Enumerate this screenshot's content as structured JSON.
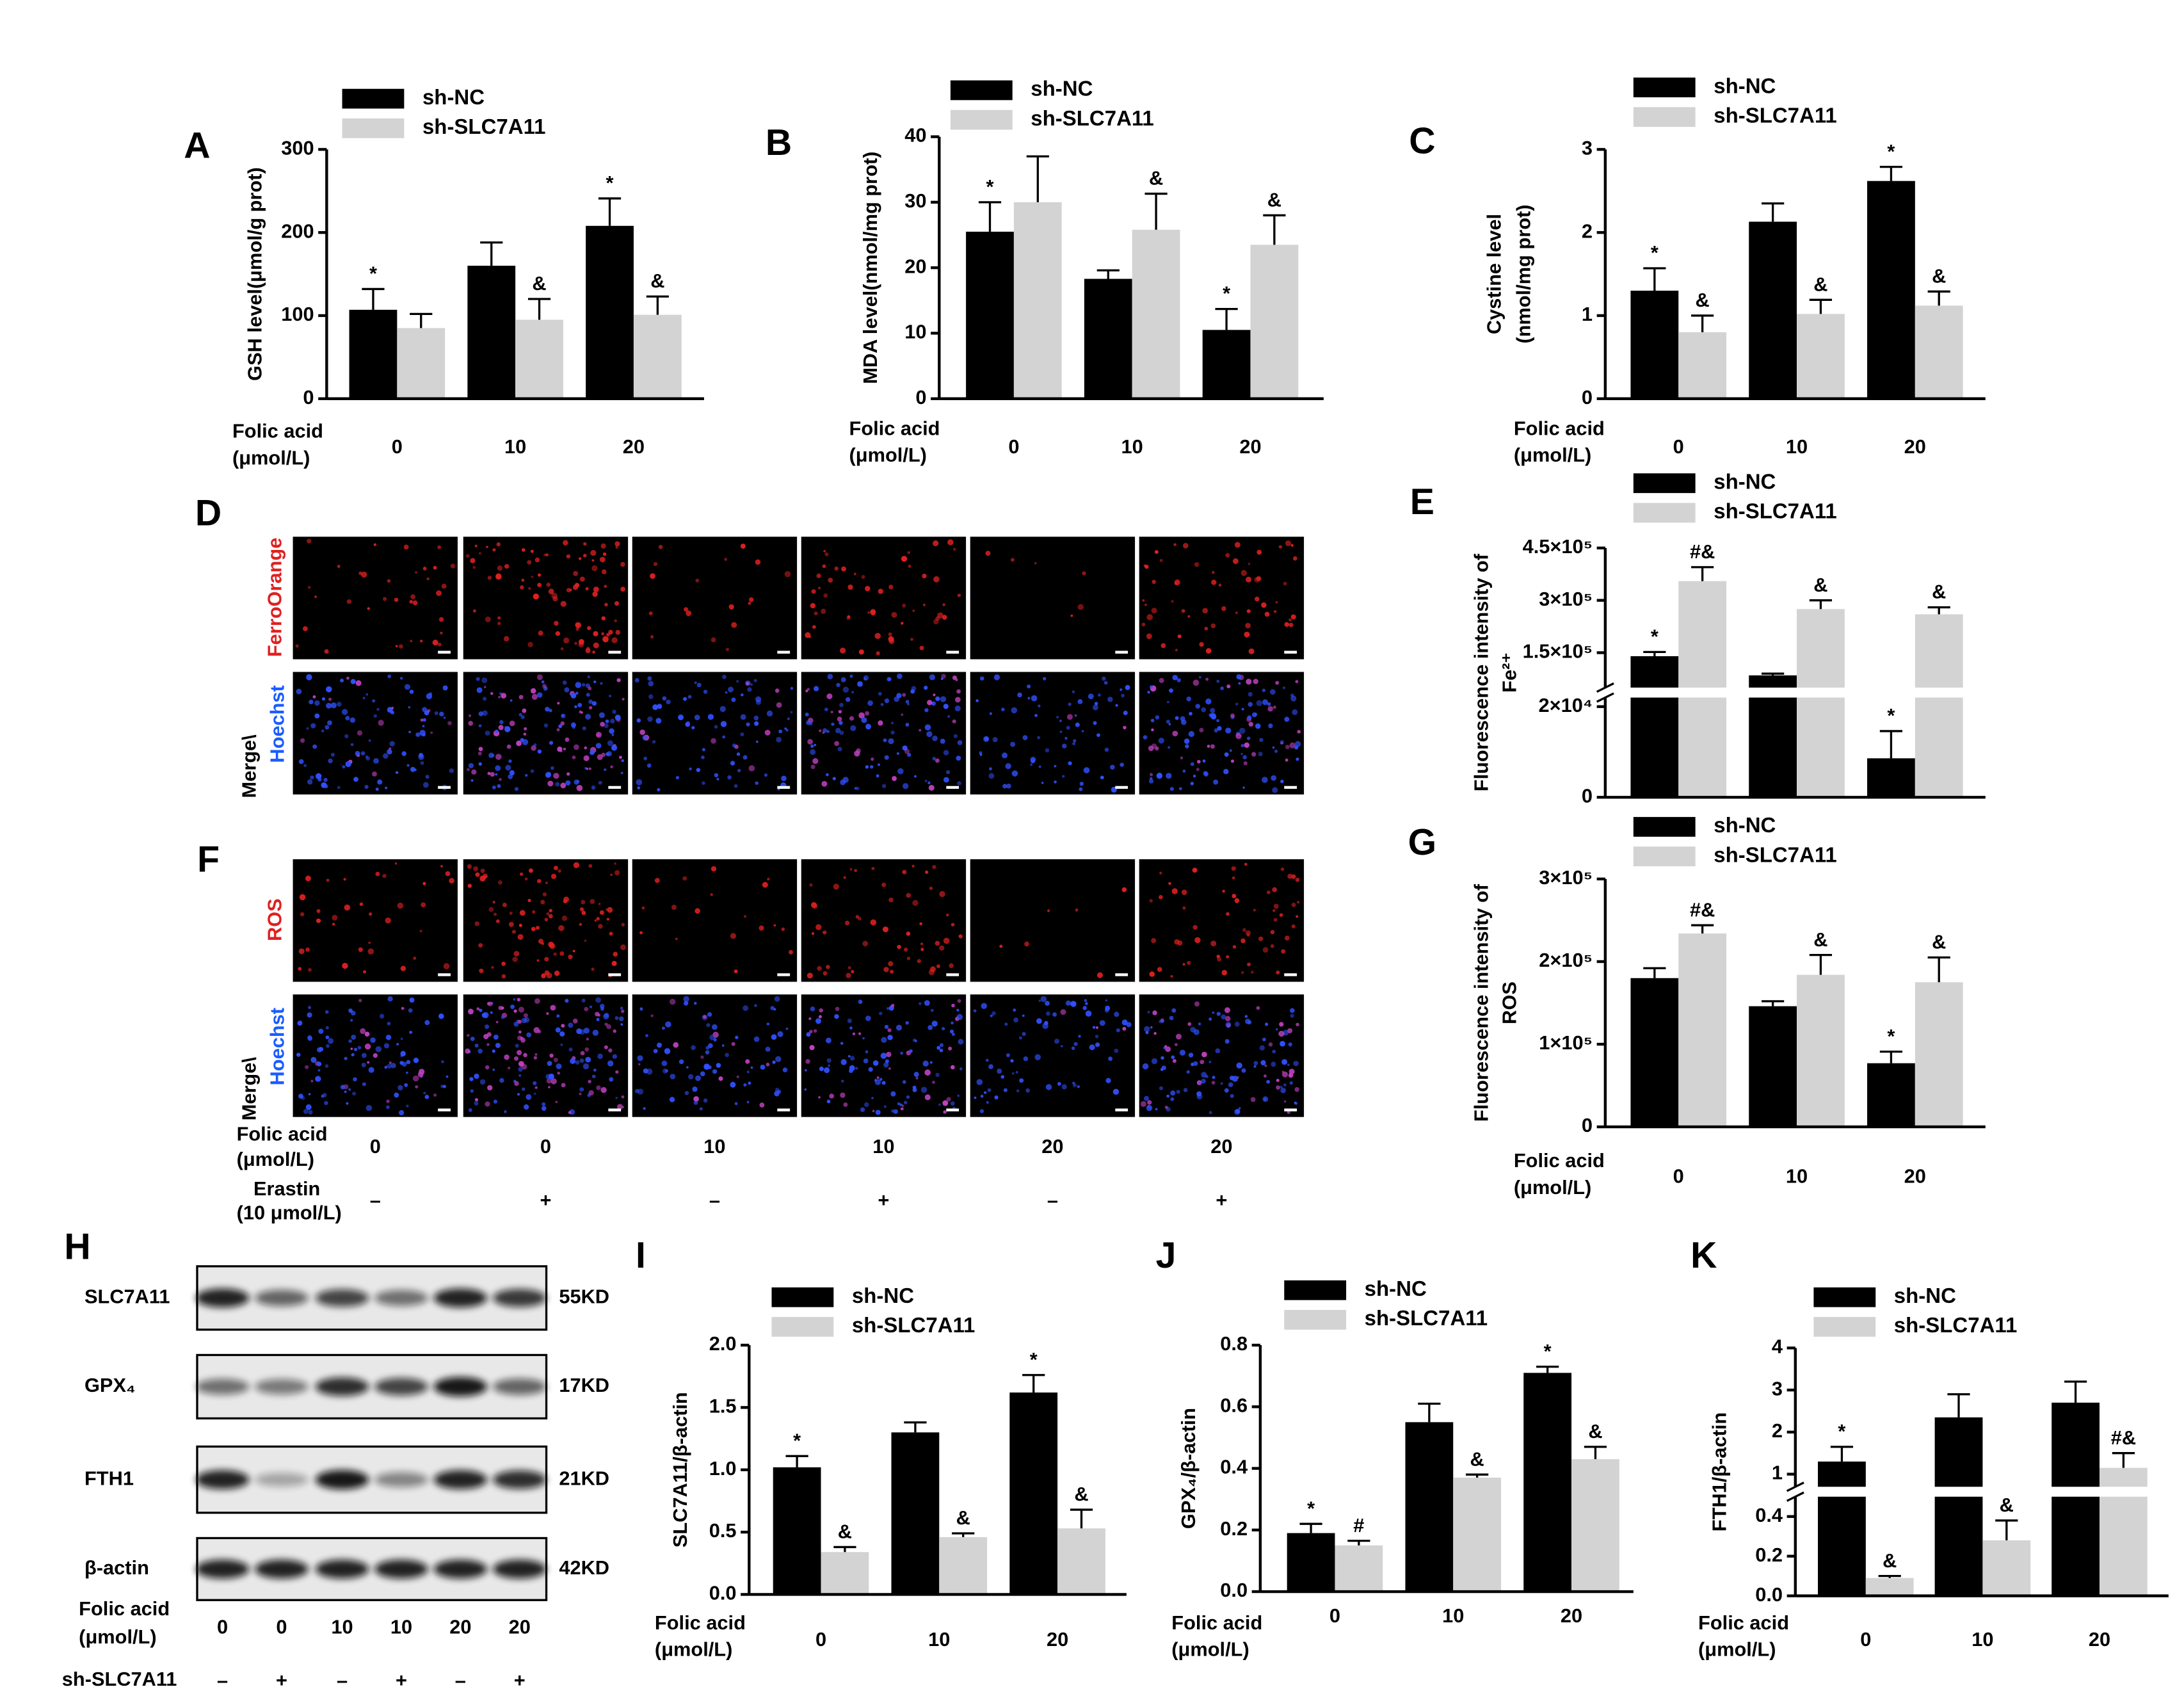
{
  "chart_data": [
    {
      "type": "bar",
      "panel": "A",
      "ylabel": [
        "GSH level(μmol/g prot)"
      ],
      "xlabel": [
        "Folic acid",
        "(μmol/L)"
      ],
      "categories": [
        "0",
        "10",
        "20"
      ],
      "ylim": [
        0,
        300
      ],
      "yticks": [
        0,
        100,
        200,
        300
      ],
      "series": [
        {
          "name": "sh-NC",
          "color": "#000000",
          "values": [
            107,
            160,
            208
          ],
          "errors": [
            25,
            28,
            33
          ],
          "annotations": [
            "*",
            null,
            "*"
          ]
        },
        {
          "name": "sh-SLC7A11",
          "color": "#d3d3d3",
          "values": [
            85,
            95,
            101
          ],
          "errors": [
            17,
            25,
            22
          ],
          "annotations": [
            null,
            "&",
            "&"
          ]
        }
      ]
    },
    {
      "type": "bar",
      "panel": "B",
      "ylabel": [
        "MDA level(nmol/mg prot)"
      ],
      "xlabel": [
        "Folic acid",
        "(μmol/L)"
      ],
      "categories": [
        "0",
        "10",
        "20"
      ],
      "ylim": [
        0,
        40
      ],
      "yticks": [
        0,
        10,
        20,
        30,
        40
      ],
      "series": [
        {
          "name": "sh-NC",
          "color": "#000000",
          "values": [
            25.5,
            18.3,
            10.5
          ],
          "errors": [
            4.5,
            1.3,
            3.2
          ],
          "annotations": [
            "*",
            null,
            "*"
          ]
        },
        {
          "name": "sh-SLC7A11",
          "color": "#d3d3d3",
          "values": [
            30,
            25.8,
            23.5
          ],
          "errors": [
            7,
            5.5,
            4.5
          ],
          "annotations": [
            null,
            "&",
            "&"
          ]
        }
      ]
    },
    {
      "type": "bar",
      "panel": "C",
      "ylabel": [
        "Cystine level",
        "(nmol/mg prot)"
      ],
      "xlabel": [
        "Folic acid",
        "(μmol/L)"
      ],
      "categories": [
        "0",
        "10",
        "20"
      ],
      "ylim": [
        0,
        3
      ],
      "yticks": [
        0,
        1,
        2,
        3
      ],
      "series": [
        {
          "name": "sh-NC",
          "color": "#000000",
          "values": [
            1.3,
            2.13,
            2.62
          ],
          "errors": [
            0.27,
            0.22,
            0.17
          ],
          "annotations": [
            "*",
            null,
            "*"
          ]
        },
        {
          "name": "sh-SLC7A11",
          "color": "#d3d3d3",
          "values": [
            0.8,
            1.02,
            1.12
          ],
          "errors": [
            0.2,
            0.17,
            0.17
          ],
          "annotations": [
            "&",
            "&",
            "&"
          ]
        }
      ]
    },
    {
      "type": "bar",
      "panel": "E",
      "ylabel": [
        "Fluorescence intensity of",
        "Fe²⁺"
      ],
      "ylim": [
        0,
        450000
      ],
      "ybreak": [
        22000,
        50000
      ],
      "yticks": [
        0,
        {
          "value": 20000,
          "label": "2×10⁴"
        },
        {
          "value": 150000,
          "label": "1.5×10⁵"
        },
        {
          "value": 300000,
          "label": "3×10⁵"
        },
        {
          "value": 450000,
          "label": "4.5×10⁵"
        }
      ],
      "series": [
        {
          "name": "sh-NC",
          "color": "#000000",
          "values": [
            140000,
            85000,
            8600
          ],
          "errors": [
            12000,
            5000,
            6000
          ],
          "annotations": [
            "*",
            null,
            "*"
          ]
        },
        {
          "name": "sh-SLC7A11",
          "color": "#d3d3d3",
          "values": [
            355000,
            275000,
            260000
          ],
          "errors": [
            40000,
            25000,
            20000
          ],
          "annotations": [
            "#&",
            "&",
            "&"
          ]
        }
      ]
    },
    {
      "type": "bar",
      "panel": "G",
      "ylabel": [
        "Fluorescence intensity of",
        "ROS"
      ],
      "xlabel": [
        "Folic acid",
        "(μmol/L)"
      ],
      "categories": [
        "0",
        "10",
        "20"
      ],
      "ylim": [
        0,
        300000
      ],
      "yticks": [
        0,
        {
          "value": 100000,
          "label": "1×10⁵"
        },
        {
          "value": 200000,
          "label": "2×10⁵"
        },
        {
          "value": 300000,
          "label": "3×10⁵"
        }
      ],
      "series": [
        {
          "name": "sh-NC",
          "color": "#000000",
          "values": [
            180000,
            146000,
            77000
          ],
          "errors": [
            12000,
            6000,
            14000
          ],
          "annotations": [
            null,
            null,
            "*"
          ]
        },
        {
          "name": "sh-SLC7A11",
          "color": "#d3d3d3",
          "values": [
            234000,
            184000,
            175000
          ],
          "errors": [
            10000,
            24000,
            30000
          ],
          "annotations": [
            "#&",
            "&",
            "&"
          ]
        }
      ]
    },
    {
      "type": "bar",
      "panel": "I",
      "ylabel": [
        "SLC7A11/β-actin"
      ],
      "xlabel": [
        "Folic acid",
        "(μmol/L)"
      ],
      "categories": [
        "0",
        "10",
        "20"
      ],
      "ylim": [
        0,
        2
      ],
      "yticks": [
        {
          "value": 0,
          "label": "0.0"
        },
        0.5,
        {
          "value": 1,
          "label": "1.0"
        },
        1.5,
        {
          "value": 2,
          "label": "2.0"
        }
      ],
      "series": [
        {
          "name": "sh-NC",
          "color": "#000000",
          "values": [
            1.02,
            1.3,
            1.62
          ],
          "errors": [
            0.09,
            0.08,
            0.14
          ],
          "annotations": [
            "*",
            null,
            "*"
          ]
        },
        {
          "name": "sh-SLC7A11",
          "color": "#d3d3d3",
          "values": [
            0.34,
            0.46,
            0.53
          ],
          "errors": [
            0.04,
            0.03,
            0.15
          ],
          "annotations": [
            "&",
            "&",
            "&"
          ]
        }
      ]
    },
    {
      "type": "bar",
      "panel": "J",
      "ylabel": [
        "GPX₄/β-actin"
      ],
      "xlabel": [
        "Folic acid",
        "(μmol/L)"
      ],
      "categories": [
        "0",
        "10",
        "20"
      ],
      "ylim": [
        0,
        0.8
      ],
      "yticks": [
        {
          "value": 0,
          "label": "0.0"
        },
        0.2,
        0.4,
        0.6,
        0.8
      ],
      "series": [
        {
          "name": "sh-NC",
          "color": "#000000",
          "values": [
            0.19,
            0.55,
            0.71
          ],
          "errors": [
            0.03,
            0.06,
            0.02
          ],
          "annotations": [
            "*",
            null,
            "*"
          ]
        },
        {
          "name": "sh-SLC7A11",
          "color": "#d3d3d3",
          "values": [
            0.15,
            0.37,
            0.43
          ],
          "errors": [
            0.015,
            0.01,
            0.04
          ],
          "annotations": [
            "#",
            "&",
            "&"
          ]
        }
      ]
    },
    {
      "type": "bar",
      "panel": "K",
      "ylabel": [
        "FTH1/β-actin"
      ],
      "xlabel": [
        "Folic acid",
        "(μmol/L)"
      ],
      "categories": [
        "0",
        "10",
        "20"
      ],
      "ylim": [
        0,
        4
      ],
      "ybreak": [
        0.5,
        0.7
      ],
      "yticks": [
        {
          "value": 0,
          "label": "0.0"
        },
        0.2,
        0.4,
        1,
        2,
        3,
        4
      ],
      "series": [
        {
          "name": "sh-NC",
          "color": "#000000",
          "values": [
            1.3,
            2.35,
            2.7
          ],
          "errors": [
            0.35,
            0.55,
            0.5
          ],
          "annotations": [
            "*",
            null,
            null
          ]
        },
        {
          "name": "sh-SLC7A11",
          "color": "#d3d3d3",
          "values": [
            0.09,
            0.28,
            1.15
          ],
          "errors": [
            0.01,
            0.1,
            0.35
          ],
          "annotations": [
            "&",
            "&",
            "#&"
          ]
        }
      ]
    }
  ],
  "figure": {
    "D": {
      "panel": "D",
      "stain": "FerroOrange",
      "merge": [
        "Merge\\",
        "Hoechst"
      ]
    },
    "F": {
      "panel": "F",
      "stain": "ROS",
      "merge": [
        "Merge\\",
        "Hoechst"
      ]
    },
    "conditions": {
      "folic_acid_label": [
        "Folic acid",
        "(μmol/L)"
      ],
      "folic_acid": [
        "0",
        "0",
        "10",
        "10",
        "20",
        "20"
      ],
      "erastin_label": [
        "Erastin",
        "(10 μmol/L)"
      ],
      "erastin": [
        "–",
        "+",
        "–",
        "+",
        "–",
        "+"
      ]
    },
    "H": {
      "panel": "H",
      "proteins": [
        "SLC7A11",
        "GPX₄",
        "FTH1",
        "β-actin"
      ],
      "sizes": [
        "55KD",
        "17KD",
        "21KD",
        "42KD"
      ],
      "folic_acid_label": [
        "Folic acid",
        "(μmol/L)"
      ],
      "folic_acid": [
        "0",
        "0",
        "10",
        "10",
        "20",
        "20"
      ],
      "knockdown_label": "sh-SLC7A11",
      "knockdown": [
        "–",
        "+",
        "–",
        "+",
        "–",
        "+"
      ]
    }
  }
}
